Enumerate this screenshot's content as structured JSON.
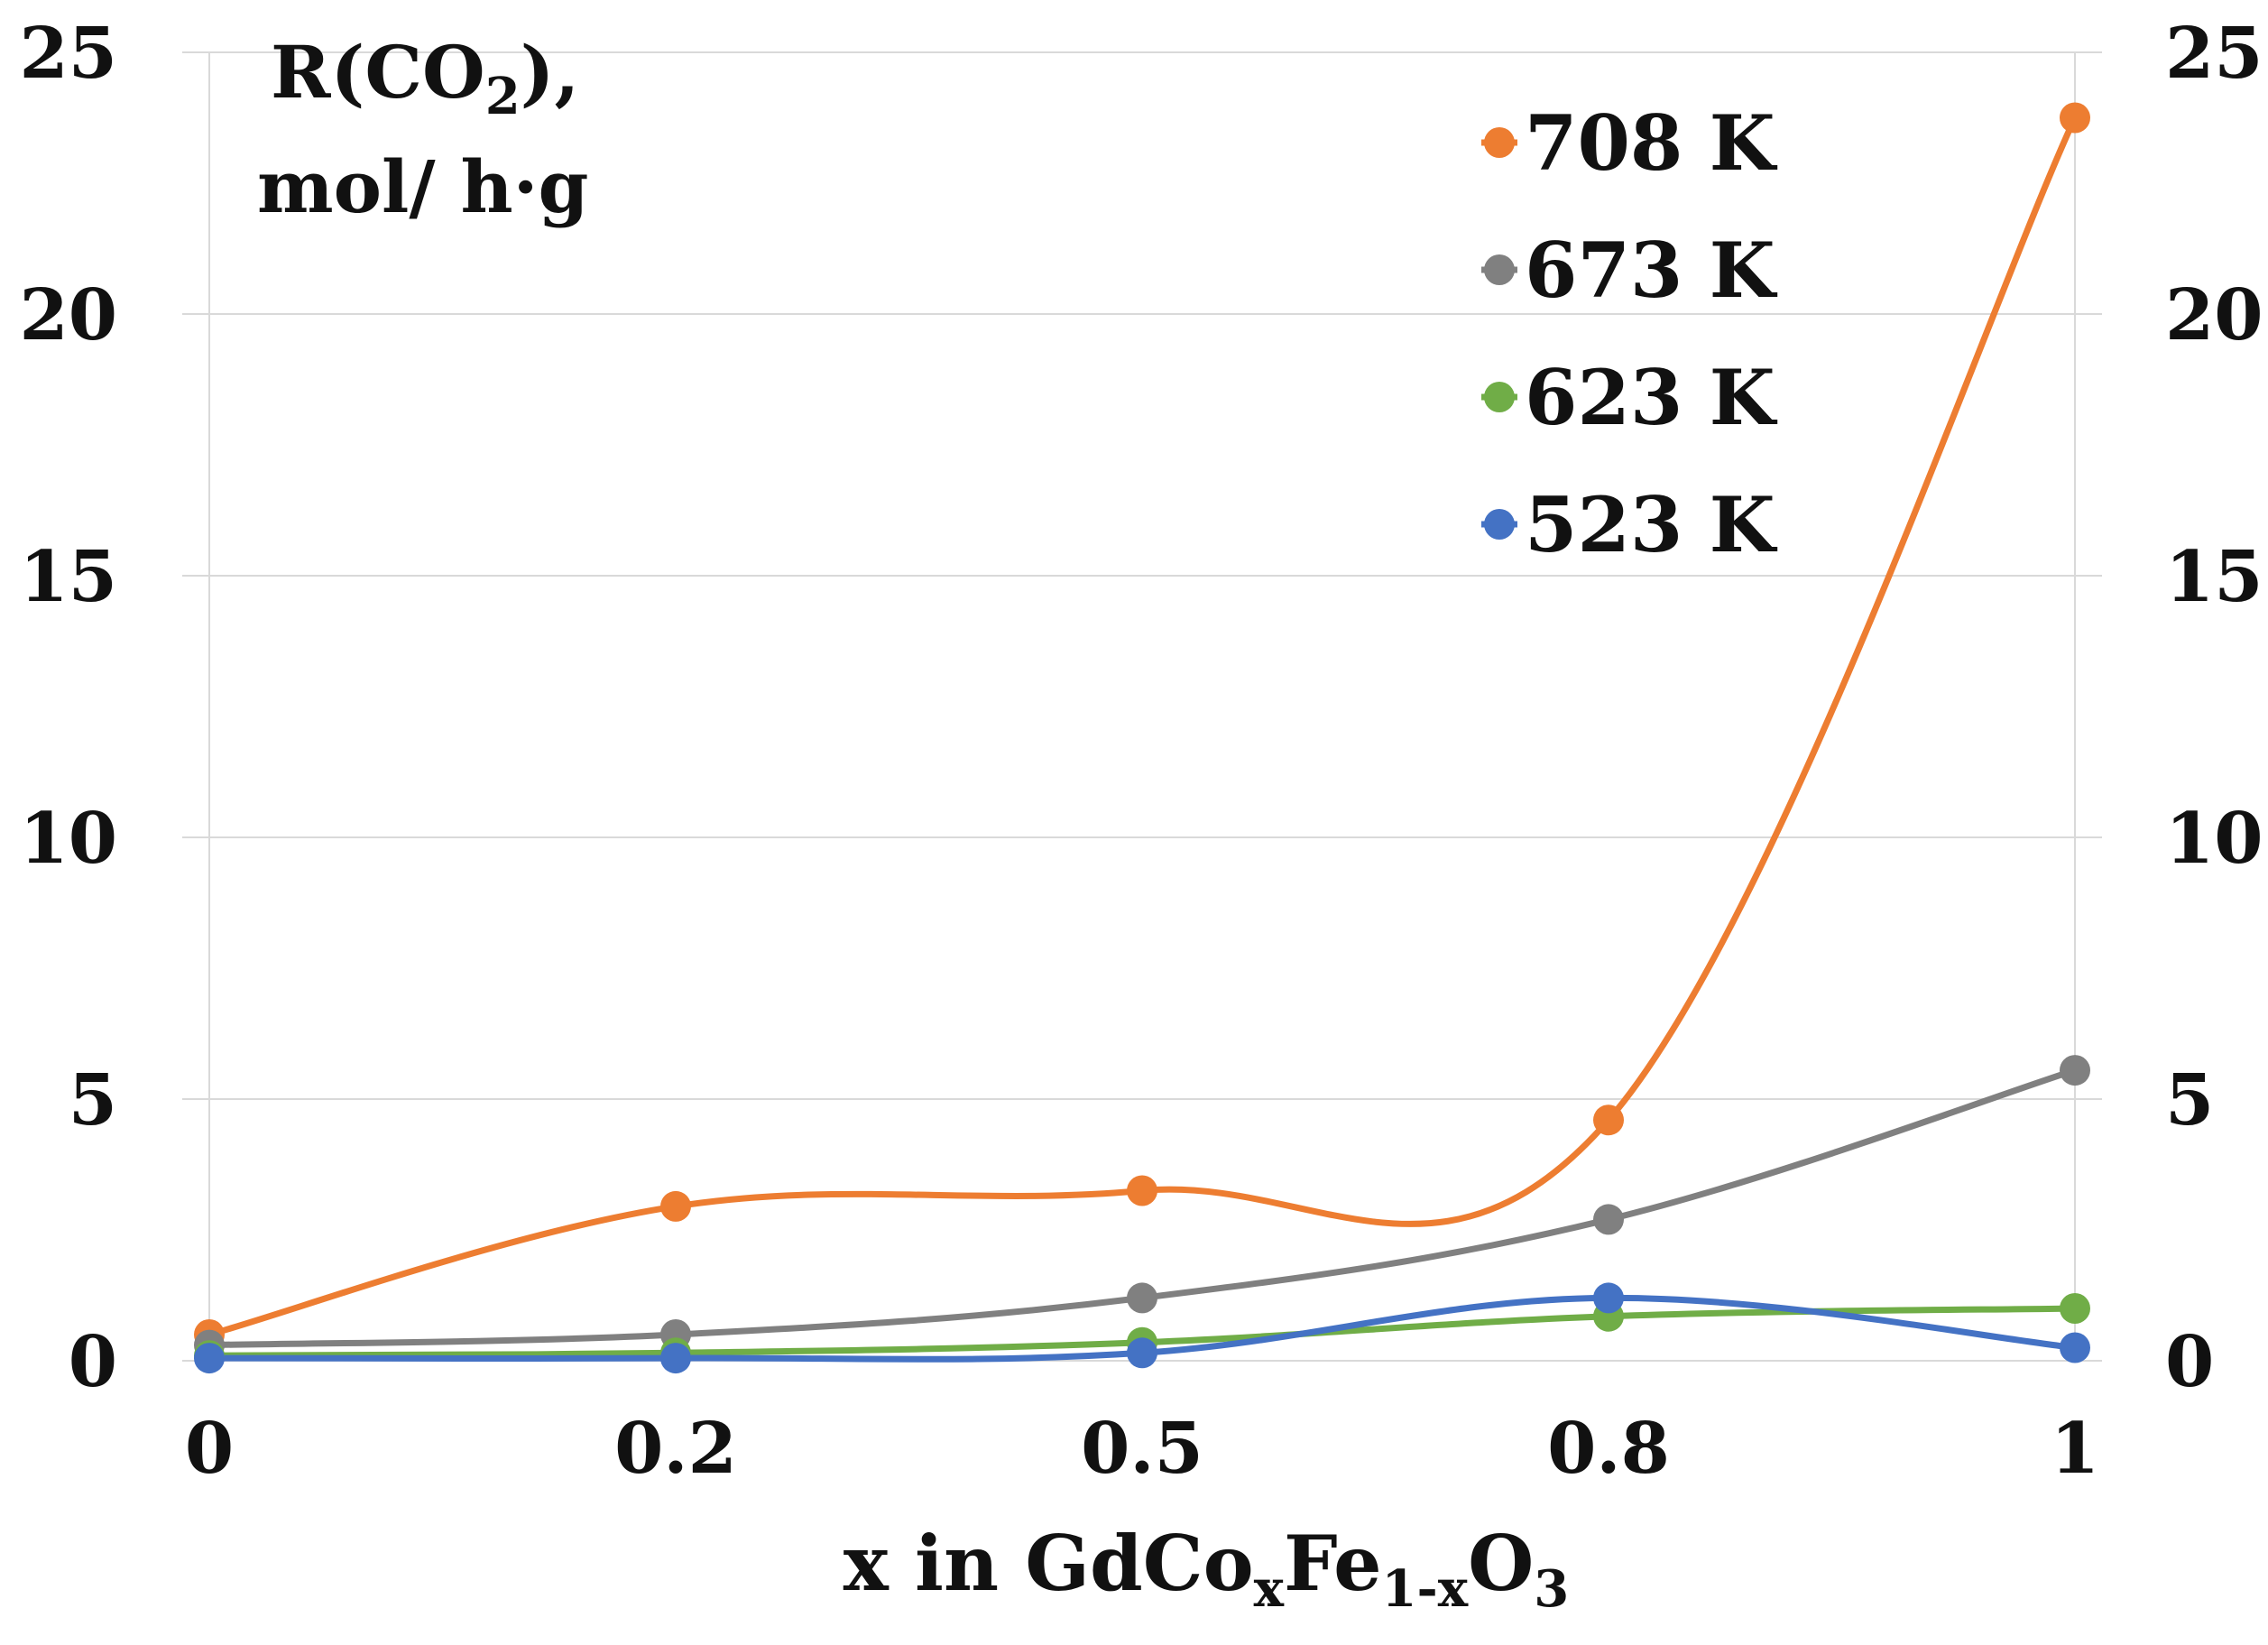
{
  "chart_data": {
    "type": "line",
    "title": "",
    "x": [
      0,
      0.2,
      0.5,
      0.8,
      1
    ],
    "x_tick_labels": [
      "0",
      "0.2",
      "0.5",
      "0.8",
      "1"
    ],
    "ylim": [
      0,
      25
    ],
    "y_ticks": [
      0,
      5,
      10,
      15,
      20,
      25
    ],
    "y_tick_labels": [
      "0",
      "5",
      "10",
      "15",
      "20",
      "25"
    ],
    "grid": "horizontal",
    "ylabel": {
      "line1_prefix": "R(CO",
      "line1_sub": "2",
      "line1_suffix": "),",
      "line2": "mol/ h·g"
    },
    "xlabel": {
      "part1": "x in GdCo",
      "sub1": "x",
      "part2": "Fe",
      "sub2": "1-x",
      "part3": "O",
      "sub3": "3"
    },
    "legend_position": "top-right",
    "series": [
      {
        "name": "708 K",
        "color": "#ED7D31",
        "values": [
          0.5,
          2.95,
          3.25,
          4.6,
          23.75
        ]
      },
      {
        "name": "673 K",
        "color": "#808080",
        "values": [
          0.3,
          0.5,
          1.2,
          2.7,
          5.55
        ]
      },
      {
        "name": "623 K",
        "color": "#70AD47",
        "values": [
          0.1,
          0.15,
          0.35,
          0.85,
          1.0
        ]
      },
      {
        "name": "523 K",
        "color": "#4472C4",
        "values": [
          0.05,
          0.05,
          0.15,
          1.2,
          0.25
        ]
      }
    ]
  }
}
